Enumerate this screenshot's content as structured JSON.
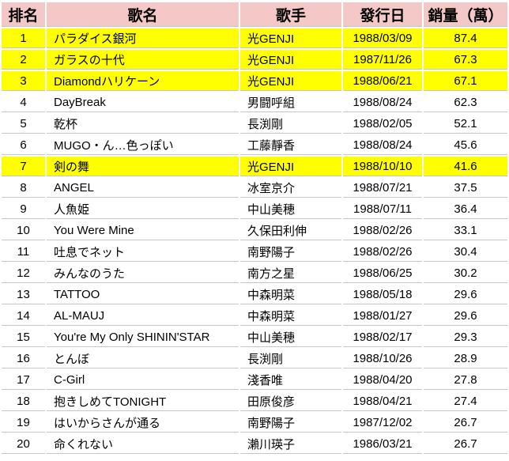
{
  "colors": {
    "header_bg": "#f4c8c6",
    "highlight_bg": "#ffff00",
    "row_bg": "#ffffff",
    "grid_line": "#c6c6c6",
    "text": "#000000"
  },
  "chart_data": {
    "type": "table",
    "columns": [
      "排名",
      "歌名",
      "歌手",
      "發行日",
      "銷量（萬）"
    ],
    "rows": [
      [
        "1",
        "パラダイス銀河",
        "光GENJI",
        "1988/03/09",
        "87.4"
      ],
      [
        "2",
        "ガラスの十代",
        "光GENJI",
        "1987/11/26",
        "67.3"
      ],
      [
        "3",
        "Diamondハリケーン",
        "光GENJI",
        "1988/06/21",
        "67.1"
      ],
      [
        "4",
        "DayBreak",
        "男闘呼組",
        "1988/08/24",
        "62.3"
      ],
      [
        "5",
        "乾杯",
        "長渕剛",
        "1988/02/05",
        "52.1"
      ],
      [
        "6",
        "MUGO・ん…色っぽい",
        "工藤靜香",
        "1988/08/24",
        "45.6"
      ],
      [
        "7",
        "剣の舞",
        "光GENJI",
        "1988/10/10",
        "41.6"
      ],
      [
        "8",
        "ANGEL",
        "冰室京介",
        "1988/07/21",
        "37.5"
      ],
      [
        "9",
        "人魚姫",
        "中山美穂",
        "1988/07/11",
        "36.4"
      ],
      [
        "10",
        "You Were Mine",
        "久保田利伸",
        "1988/02/26",
        "33.1"
      ],
      [
        "11",
        "吐息でネット",
        "南野陽子",
        "1988/02/26",
        "30.4"
      ],
      [
        "12",
        "みんなのうた",
        "南方之星",
        "1988/06/25",
        "30.2"
      ],
      [
        "13",
        "TATTOO",
        "中森明菜",
        "1988/05/18",
        "29.6"
      ],
      [
        "14",
        "AL-MAUJ",
        "中森明菜",
        "1988/01/27",
        "29.6"
      ],
      [
        "15",
        "You're My Only SHININ'STAR",
        "中山美穂",
        "1988/02/17",
        "29.3"
      ],
      [
        "16",
        "とんぼ",
        "長渕剛",
        "1988/10/26",
        "28.9"
      ],
      [
        "17",
        "C-Girl",
        "淺香唯",
        "1988/04/20",
        "27.8"
      ],
      [
        "18",
        "抱きしめてTONIGHT",
        "田原俊彦",
        "1988/04/21",
        "27.4"
      ],
      [
        "19",
        "はいからさんが通る",
        "南野陽子",
        "1987/12/02",
        "26.7"
      ],
      [
        "20",
        "命くれない",
        "瀨川瑛子",
        "1986/03/21",
        "26.7"
      ]
    ],
    "highlighted_ranks": [
      "1",
      "2",
      "3",
      "7"
    ],
    "title": "",
    "notes": "highlighted rows are songs by 光GENJI"
  }
}
